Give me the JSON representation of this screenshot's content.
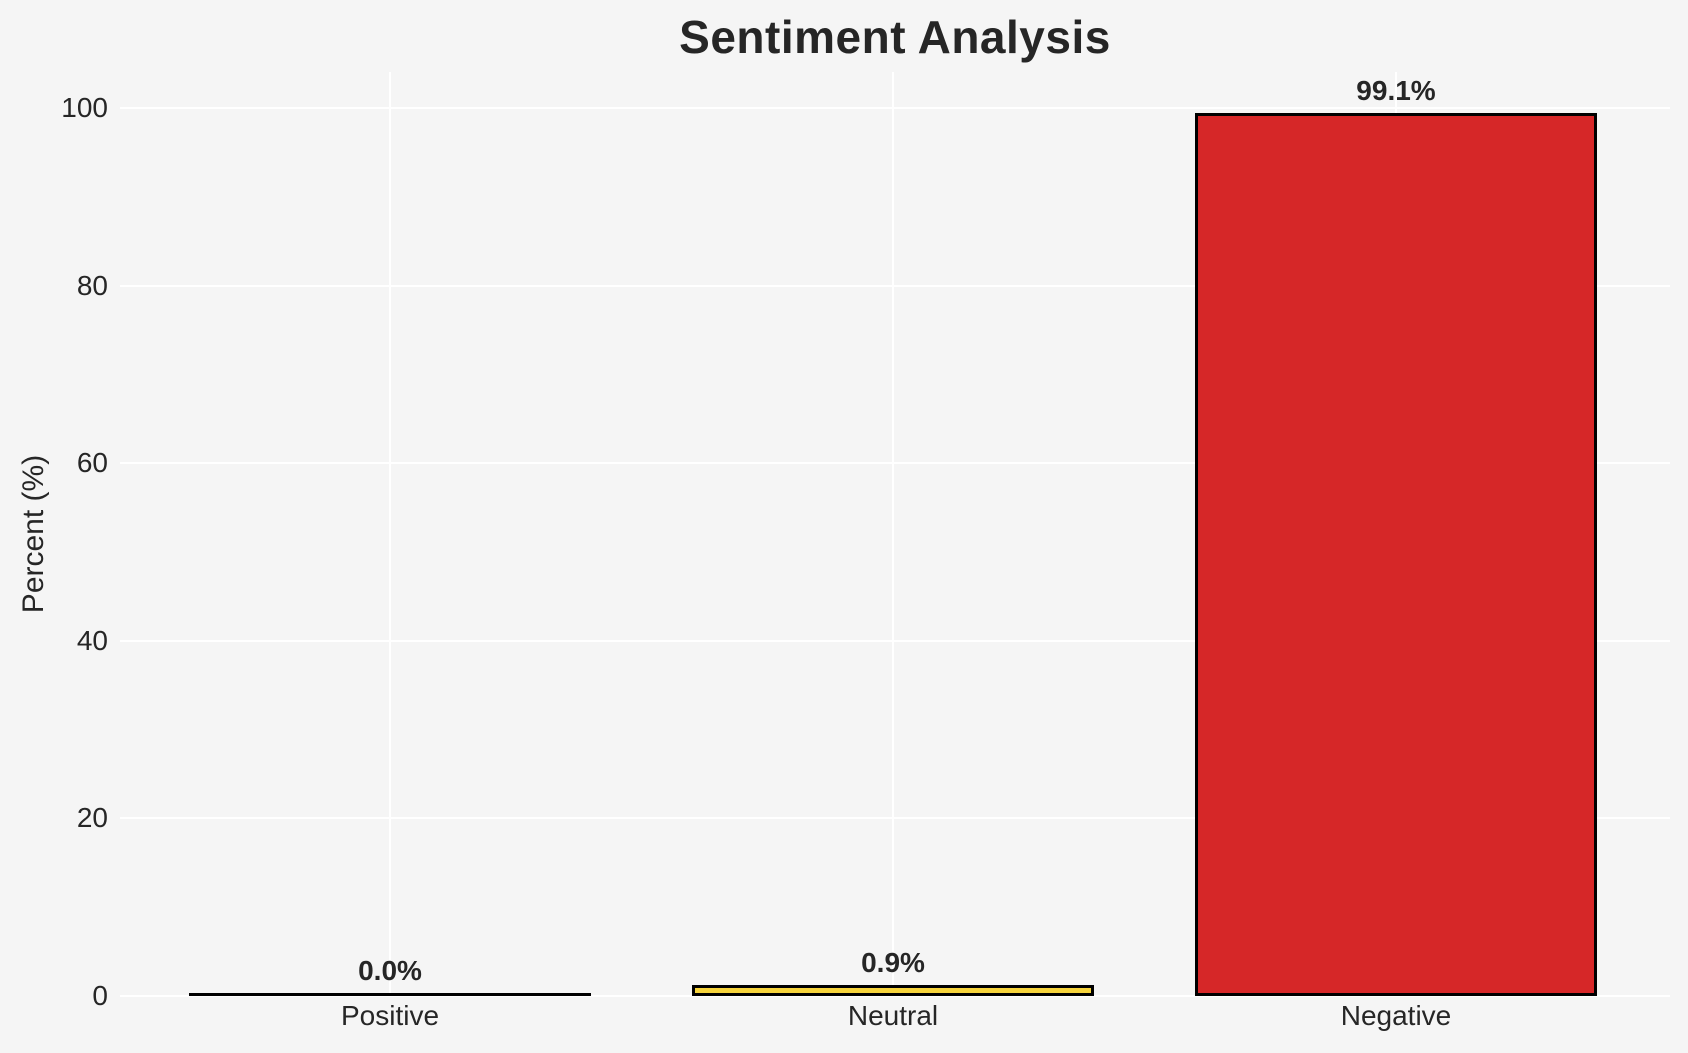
{
  "page": {
    "background": "#f5f5f5",
    "text_color": "#262626"
  },
  "chart_data": {
    "type": "bar",
    "title": "Sentiment Analysis",
    "xlabel": "",
    "ylabel": "Percent (%)",
    "categories": [
      "Positive",
      "Neutral",
      "Negative"
    ],
    "values": [
      0.0,
      0.9,
      99.1
    ],
    "value_labels": [
      "0.0%",
      "0.9%",
      "99.1%"
    ],
    "bar_colors": [
      null,
      "#f6d33b",
      "#d62728"
    ],
    "bar_edge_color": "#000000",
    "yticks": [
      0,
      20,
      40,
      60,
      80,
      100
    ],
    "ytick_labels": [
      "0",
      "20",
      "40",
      "60",
      "80",
      "100"
    ],
    "ylim": [
      0,
      104
    ],
    "grid": true,
    "gridline_color": "#ffffff",
    "plot_background": "#f5f5f5",
    "legend": null
  }
}
